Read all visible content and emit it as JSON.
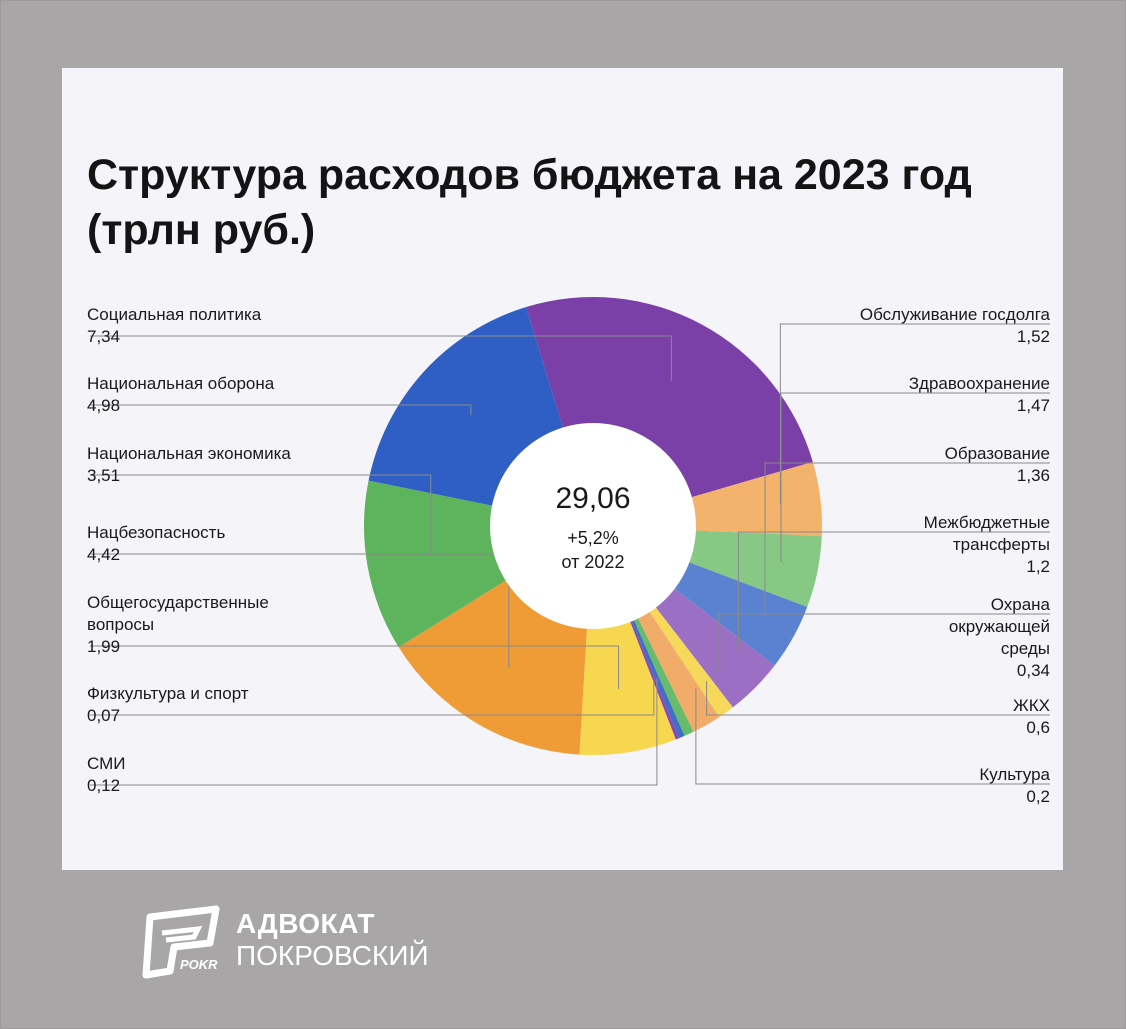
{
  "header": {
    "title_line1": "Структура расходов бюджета на 2023 год",
    "title_line2": "(трлн руб.)"
  },
  "chart_data": {
    "type": "pie",
    "title": "Структура расходов бюджета на 2023 год (трлн руб.)",
    "center": {
      "total": "29,06",
      "change": "+5,2%",
      "change_note": "от 2022"
    },
    "slices": [
      {
        "name": "Социальная политика",
        "label": "7,34",
        "value": 7.34,
        "color": "#7b3fa8"
      },
      {
        "name": "Обслуживание госдолга",
        "label": "1,52",
        "value": 1.52,
        "color": "#f3b36c"
      },
      {
        "name": "Здравоохранение",
        "label": "1,47",
        "value": 1.47,
        "color": "#86c884"
      },
      {
        "name": "Образование",
        "label": "1,36",
        "value": 1.36,
        "color": "#5b82d0"
      },
      {
        "name": "Межбюджетные трансферты",
        "label": "1,2",
        "value": 1.2,
        "color": "#9a6fc4"
      },
      {
        "name": "Охрана окружающей среды",
        "label": "0,34",
        "value": 0.34,
        "color": "#f6d85a"
      },
      {
        "name": "ЖКХ",
        "label": "0,6",
        "value": 0.6,
        "color": "#f1ac69"
      },
      {
        "name": "Культура",
        "label": "0,2",
        "value": 0.2,
        "color": "#67bb6a"
      },
      {
        "name": "СМИ",
        "label": "0,12",
        "value": 0.12,
        "color": "#3f6fc6"
      },
      {
        "name": "Физкультура и спорт",
        "label": "0,07",
        "value": 0.07,
        "color": "#8b47b5"
      },
      {
        "name": "Общегосударственные вопросы",
        "label": "1,99",
        "value": 1.99,
        "color": "#f7d74f"
      },
      {
        "name": "Нацбезопасность",
        "label": "4,42",
        "value": 4.42,
        "color": "#ef9b36"
      },
      {
        "name": "Национальная экономика",
        "label": "3,51",
        "value": 3.51,
        "color": "#5eb45d"
      },
      {
        "name": "Национальная оборона",
        "label": "4,98",
        "value": 4.98,
        "color": "#2f5fc4"
      }
    ]
  },
  "labels_left": [
    {
      "lines": [
        "Социальная политика"
      ],
      "value": "7,34"
    },
    {
      "lines": [
        "Национальная оборона"
      ],
      "value": "4,98"
    },
    {
      "lines": [
        "Национальная экономика"
      ],
      "value": "3,51"
    },
    {
      "lines": [
        "Нацбезопасность"
      ],
      "value": "4,42"
    },
    {
      "lines": [
        "Общегосударственные",
        "вопросы"
      ],
      "value": "1,99"
    },
    {
      "lines": [
        "Физкультура и спорт"
      ],
      "value": "0,07"
    },
    {
      "lines": [
        "СМИ"
      ],
      "value": "0,12"
    }
  ],
  "labels_right": [
    {
      "lines": [
        "Обслуживание госдолга"
      ],
      "value": "1,52"
    },
    {
      "lines": [
        "Здравоохранение"
      ],
      "value": "1,47"
    },
    {
      "lines": [
        "Образование"
      ],
      "value": "1,36"
    },
    {
      "lines": [
        "Межбюджетные",
        "трансферты"
      ],
      "value": "1,2"
    },
    {
      "lines": [
        "Охрана",
        "окружающей",
        "среды"
      ],
      "value": "0,34"
    },
    {
      "lines": [
        "ЖКХ"
      ],
      "value": "0,6"
    },
    {
      "lines": [
        "Культура"
      ],
      "value": "0,2"
    }
  ],
  "brand": {
    "line1": "АДВОКАТ",
    "line2": "ПОКРОВСКИЙ",
    "logo_text": "POKR"
  }
}
